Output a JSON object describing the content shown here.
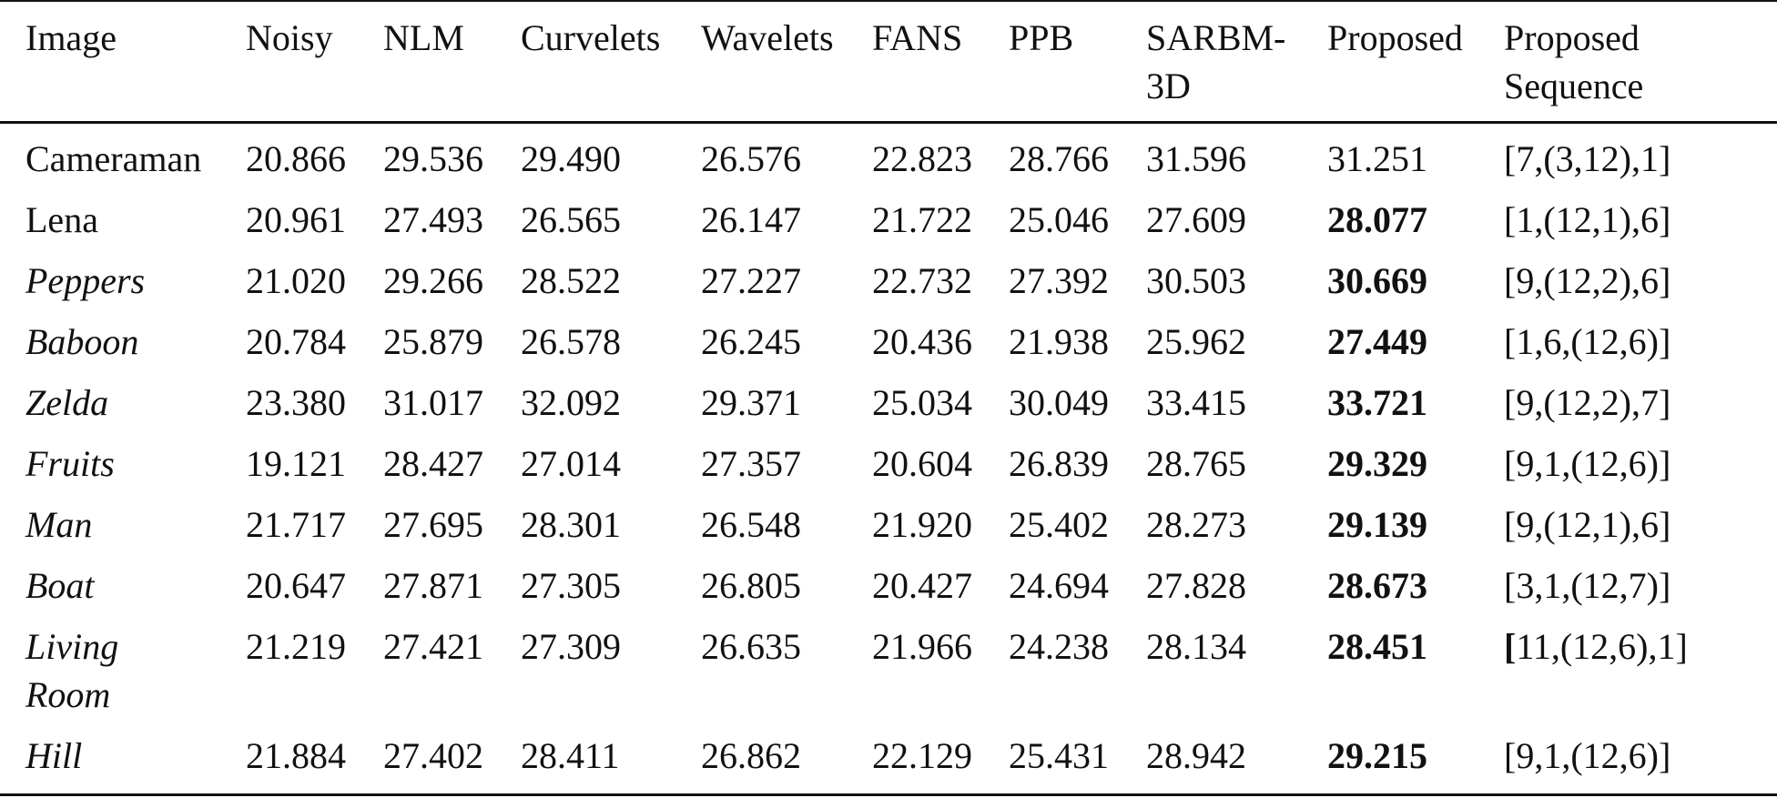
{
  "table": {
    "headers": [
      [
        "Image"
      ],
      [
        "Noisy"
      ],
      [
        "NLM"
      ],
      [
        "Curvelets"
      ],
      [
        "Wavelets"
      ],
      [
        "FANS"
      ],
      [
        "PPB"
      ],
      [
        "SARBM-",
        "3D"
      ],
      [
        "Proposed"
      ],
      [
        "Proposed",
        "Sequence"
      ]
    ],
    "rows": [
      {
        "image": [
          "Cameraman"
        ],
        "italic": false,
        "values": [
          "20.866",
          "29.536",
          "29.490",
          "26.576",
          "22.823",
          "28.766",
          "31.596",
          "31.251"
        ],
        "best_bold": false,
        "sequence": "[7,(3,12),1]"
      },
      {
        "image": [
          "Lena"
        ],
        "italic": false,
        "values": [
          "20.961",
          "27.493",
          "26.565",
          "26.147",
          "21.722",
          "25.046",
          "27.609",
          "28.077"
        ],
        "best_bold": true,
        "sequence": "[1,(12,1),6]"
      },
      {
        "image": [
          "Peppers"
        ],
        "italic": true,
        "values": [
          "21.020",
          "29.266",
          "28.522",
          "27.227",
          "22.732",
          "27.392",
          "30.503",
          "30.669"
        ],
        "best_bold": true,
        "sequence": "[9,(12,2),6]"
      },
      {
        "image": [
          "Baboon"
        ],
        "italic": true,
        "values": [
          "20.784",
          "25.879",
          "26.578",
          "26.245",
          "20.436",
          "21.938",
          "25.962",
          "27.449"
        ],
        "best_bold": true,
        "sequence": "[1,6,(12,6)]"
      },
      {
        "image": [
          "Zelda"
        ],
        "italic": true,
        "values": [
          "23.380",
          "31.017",
          "32.092",
          "29.371",
          "25.034",
          "30.049",
          "33.415",
          "33.721"
        ],
        "best_bold": true,
        "sequence": "[9,(12,2),7]"
      },
      {
        "image": [
          "Fruits"
        ],
        "italic": true,
        "values": [
          "19.121",
          "28.427",
          "27.014",
          "27.357",
          "20.604",
          "26.839",
          "28.765",
          "29.329"
        ],
        "best_bold": true,
        "sequence": "[9,1,(12,6)]"
      },
      {
        "image": [
          "Man"
        ],
        "italic": true,
        "values": [
          "21.717",
          "27.695",
          "28.301",
          "26.548",
          "21.920",
          "25.402",
          "28.273",
          "29.139"
        ],
        "best_bold": true,
        "sequence": "[9,(12,1),6]"
      },
      {
        "image": [
          "Boat"
        ],
        "italic": true,
        "values": [
          "20.647",
          "27.871",
          "27.305",
          "26.805",
          "20.427",
          "24.694",
          "27.828",
          "28.673"
        ],
        "best_bold": true,
        "sequence": "[3,1,(12,7)]"
      },
      {
        "image": [
          "Living",
          "Room"
        ],
        "italic": true,
        "values": [
          "21.219",
          "27.421",
          "27.309",
          "26.635",
          "21.966",
          "24.238",
          "28.134",
          "28.451"
        ],
        "best_bold": true,
        "sequence_bold_prefix": "[",
        "sequence": "11,(12,6),1]"
      },
      {
        "image": [
          "Hill"
        ],
        "italic": true,
        "values": [
          "21.884",
          "27.402",
          "28.411",
          "26.862",
          "22.129",
          "25.431",
          "28.942",
          "29.215"
        ],
        "best_bold": true,
        "sequence": "[9,1,(12,6)]"
      }
    ]
  }
}
